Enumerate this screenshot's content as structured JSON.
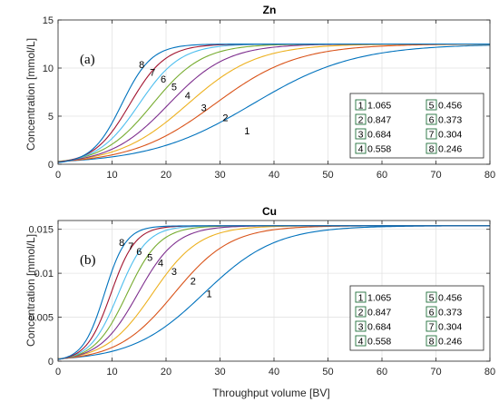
{
  "figure": {
    "xlabel": "Throughput volume [BV]"
  },
  "chart_data": [
    {
      "type": "line",
      "title": "Zn",
      "panel_label": "(a)",
      "ylabel": "Concentration [mmol/L]",
      "xlabel": "",
      "xlim": [
        0,
        80
      ],
      "ylim": [
        0,
        15
      ],
      "xticks": [
        "0",
        "10",
        "20",
        "30",
        "40",
        "50",
        "60",
        "70",
        "80"
      ],
      "yticks": [
        "0",
        "5",
        "10",
        "15"
      ],
      "grid": true,
      "legend_position": "lower-right",
      "legend_columns": 2,
      "plateau": 12.5,
      "series": [
        {
          "name": "1",
          "value": "1.065",
          "color": "#0072BD",
          "midpoint_x": 36.0,
          "slope": 0.105,
          "label_x": 35,
          "label_y": 3.1
        },
        {
          "name": "2",
          "value": "0.847",
          "color": "#D95319",
          "midpoint_x": 29.0,
          "slope": 0.13,
          "label_x": 31,
          "label_y": 4.5
        },
        {
          "name": "3",
          "value": "0.684",
          "color": "#EDB120",
          "midpoint_x": 24.0,
          "slope": 0.155,
          "label_x": 27,
          "label_y": 5.5
        },
        {
          "name": "4",
          "value": "0.558",
          "color": "#7E2F8E",
          "midpoint_x": 20.5,
          "slope": 0.185,
          "label_x": 24,
          "label_y": 6.8
        },
        {
          "name": "5",
          "value": "0.456",
          "color": "#77AC30",
          "midpoint_x": 17.5,
          "slope": 0.215,
          "label_x": 21.5,
          "label_y": 7.7
        },
        {
          "name": "6",
          "value": "0.373",
          "color": "#4DBEEE",
          "midpoint_x": 15.0,
          "slope": 0.26,
          "label_x": 19.5,
          "label_y": 8.5
        },
        {
          "name": "7",
          "value": "0.304",
          "color": "#A2142F",
          "midpoint_x": 13.3,
          "slope": 0.3,
          "label_x": 17.5,
          "label_y": 9.2
        },
        {
          "name": "8",
          "value": "0.246",
          "color": "#0072BD",
          "midpoint_x": 11.8,
          "slope": 0.36,
          "label_x": 15.5,
          "label_y": 10.0
        }
      ]
    },
    {
      "type": "line",
      "title": "Cu",
      "panel_label": "(b)",
      "ylabel": "Concentration [mmol/L]",
      "xlabel": "Throughput volume [BV]",
      "xlim": [
        0,
        80
      ],
      "ylim": [
        0,
        0.016
      ],
      "xticks": [
        "0",
        "10",
        "20",
        "30",
        "40",
        "50",
        "60",
        "70",
        "80"
      ],
      "yticks": [
        "0",
        "0.005",
        "0.01",
        "0.015"
      ],
      "grid": true,
      "legend_position": "lower-right",
      "legend_columns": 2,
      "plateau": 0.0154,
      "series": [
        {
          "name": "1",
          "value": "1.065",
          "color": "#0072BD",
          "midpoint_x": 27.0,
          "slope": 0.15,
          "label_x": 28,
          "label_y": 0.0073
        },
        {
          "name": "2",
          "value": "0.847",
          "color": "#D95319",
          "midpoint_x": 21.5,
          "slope": 0.19,
          "label_x": 25,
          "label_y": 0.0087
        },
        {
          "name": "3",
          "value": "0.684",
          "color": "#EDB120",
          "midpoint_x": 17.5,
          "slope": 0.23,
          "label_x": 21.5,
          "label_y": 0.0098
        },
        {
          "name": "4",
          "value": "0.558",
          "color": "#7E2F8E",
          "midpoint_x": 14.8,
          "slope": 0.28,
          "label_x": 19,
          "label_y": 0.0108
        },
        {
          "name": "5",
          "value": "0.456",
          "color": "#77AC30",
          "midpoint_x": 12.8,
          "slope": 0.33,
          "label_x": 17,
          "label_y": 0.0114
        },
        {
          "name": "6",
          "value": "0.373",
          "color": "#4DBEEE",
          "midpoint_x": 11.2,
          "slope": 0.38,
          "label_x": 15,
          "label_y": 0.0121
        },
        {
          "name": "7",
          "value": "0.304",
          "color": "#A2142F",
          "midpoint_x": 9.8,
          "slope": 0.44,
          "label_x": 13.5,
          "label_y": 0.0127
        },
        {
          "name": "8",
          "value": "0.246",
          "color": "#0072BD",
          "midpoint_x": 8.6,
          "slope": 0.5,
          "label_x": 11.8,
          "label_y": 0.0131
        }
      ]
    }
  ]
}
